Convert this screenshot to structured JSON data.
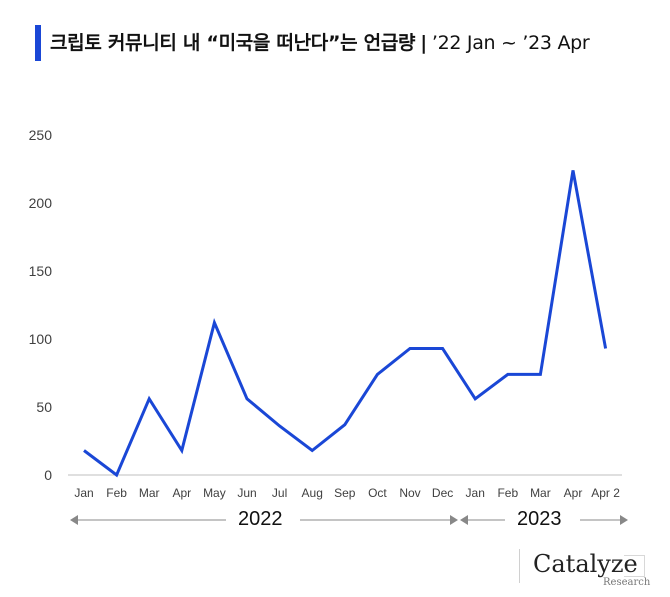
{
  "header": {
    "title": "크립토 커뮤니티 내 “미국을 떠난다”는 언급량",
    "separator": "|",
    "range": "’22 Jan ~ ’23 Apr"
  },
  "colors": {
    "accent": "#1a47d6",
    "line": "#1a47d6",
    "axis": "#bfbfbf",
    "tick_text": "#404040",
    "year_arrow": "#888888"
  },
  "chart_data": {
    "type": "line",
    "categories": [
      "Jan",
      "Feb",
      "Mar",
      "Apr",
      "May",
      "Jun",
      "Jul",
      "Aug",
      "Sep",
      "Oct",
      "Nov",
      "Dec",
      "Jan",
      "Feb",
      "Mar",
      "Apr",
      "Apr 2"
    ],
    "series": [
      {
        "values": [
          18,
          0,
          56,
          18,
          112,
          56,
          36,
          18,
          37,
          74,
          93,
          93,
          56,
          74,
          74,
          224,
          93
        ]
      }
    ],
    "yticks": [
      0,
      50,
      100,
      150,
      200,
      250
    ],
    "ylim": [
      0,
      250
    ],
    "grid": false,
    "year_groups": [
      {
        "label": "2022",
        "from_index": 0,
        "to_index": 11
      },
      {
        "label": "2023",
        "from_index": 12,
        "to_index": 16
      }
    ]
  },
  "brand": {
    "name": "Catalyze",
    "sub": "Research"
  }
}
